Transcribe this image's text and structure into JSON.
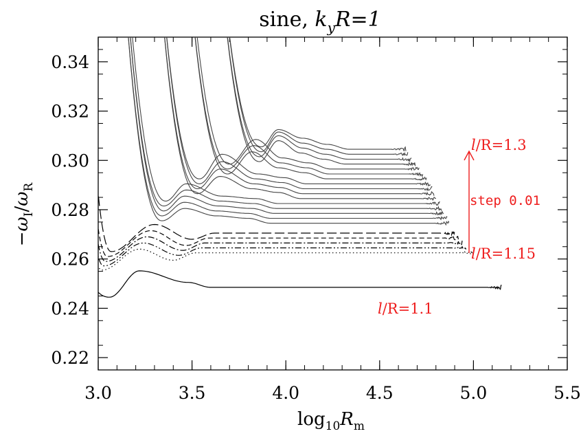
{
  "chart_data": {
    "type": "line",
    "title": {
      "prefix": "sine,",
      "var": "k",
      "sub": "y",
      "rest": "R=1"
    },
    "xlabel": {
      "main": "log",
      "sub": "10",
      "var": "R",
      "var_sub": "m"
    },
    "ylabel": {
      "minus": "−",
      "num": "ω",
      "num_sub": "I",
      "slash": "/",
      "den": "ω",
      "den_sub": "R"
    },
    "xlim": [
      3.0,
      5.5
    ],
    "ylim": [
      0.215,
      0.35
    ],
    "xticks": [
      "3.0",
      "3.5",
      "4.0",
      "4.5",
      "5.0",
      "5.5"
    ],
    "yticks": [
      "0.22",
      "0.24",
      "0.26",
      "0.28",
      "0.30",
      "0.32",
      "0.34"
    ],
    "grid": false,
    "line_color": "#000000",
    "annotation_color": "#ee1c1c",
    "annotations": {
      "top": {
        "l": "l",
        "rest": "/R=1.3"
      },
      "step": "step 0.01",
      "bottom": {
        "l": "l",
        "rest": "/R=1.15"
      },
      "lowest": {
        "l": "l",
        "rest": "/R=1.1"
      }
    },
    "series": [
      {
        "style": "solid",
        "min_x": 3.06,
        "min_y": 0.2445,
        "end_x": 5.15,
        "plateau": 0.2485,
        "bumps": [
          [
            3.22,
            0.2552
          ],
          [
            3.48,
            0.2505
          ]
        ]
      },
      {
        "style": "dotted",
        "min_x": 3.02,
        "min_y": 0.2555,
        "end_x": 5.0,
        "plateau": 0.2625,
        "bumps": [
          [
            3.22,
            0.264
          ],
          [
            3.4,
            0.2595
          ]
        ]
      },
      {
        "style": "dashdotdot",
        "min_x": 3.03,
        "min_y": 0.2572,
        "end_x": 4.96,
        "plateau": 0.2645,
        "bumps": [
          [
            3.24,
            0.2665
          ],
          [
            3.43,
            0.2615
          ]
        ]
      },
      {
        "style": "dashdot",
        "min_x": 3.04,
        "min_y": 0.259,
        "end_x": 4.94,
        "plateau": 0.2665,
        "bumps": [
          [
            3.26,
            0.269
          ],
          [
            3.45,
            0.2635
          ]
        ]
      },
      {
        "style": "dashed",
        "min_x": 3.05,
        "min_y": 0.261,
        "end_x": 4.92,
        "plateau": 0.2685,
        "bumps": [
          [
            3.28,
            0.2715
          ],
          [
            3.47,
            0.2655
          ]
        ]
      },
      {
        "style": "longdash",
        "min_x": 3.07,
        "min_y": 0.263,
        "end_x": 4.9,
        "plateau": 0.2705,
        "bumps": [
          [
            3.3,
            0.274
          ],
          [
            3.5,
            0.268
          ]
        ]
      },
      {
        "style": "solid",
        "min_x": 3.34,
        "min_y": 0.2755,
        "end_x": 4.87,
        "plateau": 0.2745,
        "bumps": [
          [
            3.46,
            0.2805
          ],
          [
            3.63,
            0.2775
          ],
          [
            3.8,
            0.2765
          ]
        ]
      },
      {
        "style": "solid",
        "min_x": 3.34,
        "min_y": 0.2775,
        "end_x": 4.86,
        "plateau": 0.2765,
        "bumps": [
          [
            3.46,
            0.283
          ],
          [
            3.63,
            0.2795
          ],
          [
            3.8,
            0.2785
          ]
        ]
      },
      {
        "style": "solid",
        "min_x": 3.35,
        "min_y": 0.2795,
        "end_x": 4.84,
        "plateau": 0.2785,
        "bumps": [
          [
            3.46,
            0.2855
          ],
          [
            3.64,
            0.2815
          ],
          [
            3.82,
            0.2805
          ]
        ]
      },
      {
        "style": "solid",
        "min_x": 3.35,
        "min_y": 0.2815,
        "end_x": 4.83,
        "plateau": 0.2805,
        "bumps": [
          [
            3.47,
            0.288
          ],
          [
            3.65,
            0.2835
          ],
          [
            3.83,
            0.2825
          ]
        ]
      },
      {
        "style": "solid",
        "min_x": 3.36,
        "min_y": 0.2835,
        "end_x": 4.82,
        "plateau": 0.2825,
        "bumps": [
          [
            3.47,
            0.2905
          ],
          [
            3.66,
            0.2855
          ],
          [
            3.84,
            0.2845
          ]
        ]
      },
      {
        "style": "solid",
        "min_x": 3.53,
        "min_y": 0.2865,
        "end_x": 4.8,
        "plateau": 0.2845,
        "bumps": [
          [
            3.65,
            0.2935
          ],
          [
            3.82,
            0.2885
          ],
          [
            3.96,
            0.287
          ]
        ]
      },
      {
        "style": "solid",
        "min_x": 3.53,
        "min_y": 0.2885,
        "end_x": 4.79,
        "plateau": 0.2865,
        "bumps": [
          [
            3.65,
            0.2965
          ],
          [
            3.83,
            0.2905
          ],
          [
            3.97,
            0.289
          ]
        ]
      },
      {
        "style": "solid",
        "min_x": 3.54,
        "min_y": 0.2905,
        "end_x": 4.78,
        "plateau": 0.2885,
        "bumps": [
          [
            3.66,
            0.2995
          ],
          [
            3.84,
            0.2925
          ],
          [
            3.98,
            0.291
          ]
        ]
      },
      {
        "style": "solid",
        "min_x": 3.54,
        "min_y": 0.2925,
        "end_x": 4.77,
        "plateau": 0.2905,
        "bumps": [
          [
            3.66,
            0.3025
          ],
          [
            3.85,
            0.2945
          ],
          [
            3.99,
            0.293
          ]
        ]
      },
      {
        "style": "solid",
        "min_x": 3.69,
        "min_y": 0.2945,
        "end_x": 4.75,
        "plateau": 0.2925,
        "bumps": [
          [
            3.82,
            0.3035
          ],
          [
            3.96,
            0.297
          ],
          [
            4.1,
            0.295
          ]
        ]
      },
      {
        "style": "solid",
        "min_x": 3.69,
        "min_y": 0.2965,
        "end_x": 4.73,
        "plateau": 0.2945,
        "bumps": [
          [
            3.83,
            0.306
          ],
          [
            3.97,
            0.299
          ],
          [
            4.11,
            0.297
          ]
        ]
      },
      {
        "style": "solid",
        "min_x": 3.7,
        "min_y": 0.2985,
        "end_x": 4.71,
        "plateau": 0.2965,
        "bumps": [
          [
            3.84,
            0.3085
          ],
          [
            3.98,
            0.301
          ],
          [
            4.12,
            0.299
          ]
        ]
      },
      {
        "style": "solid",
        "min_x": 3.86,
        "min_y": 0.2995,
        "end_x": 4.69,
        "plateau": 0.2985,
        "bumps": [
          [
            3.96,
            0.308
          ],
          [
            4.08,
            0.303
          ],
          [
            4.2,
            0.3005
          ]
        ]
      },
      {
        "style": "solid",
        "min_x": 3.86,
        "min_y": 0.3015,
        "end_x": 4.67,
        "plateau": 0.3005,
        "bumps": [
          [
            3.96,
            0.31
          ],
          [
            4.09,
            0.305
          ],
          [
            4.21,
            0.3025
          ]
        ]
      },
      {
        "style": "solid",
        "min_x": 3.87,
        "min_y": 0.3035,
        "end_x": 4.65,
        "plateau": 0.3025,
        "bumps": [
          [
            3.96,
            0.3115
          ],
          [
            4.09,
            0.307
          ],
          [
            4.22,
            0.3045
          ]
        ]
      },
      {
        "style": "solid",
        "min_x": 3.87,
        "min_y": 0.3055,
        "end_x": 4.64,
        "plateau": 0.3045,
        "bumps": [
          [
            3.96,
            0.3125
          ],
          [
            4.09,
            0.309
          ],
          [
            4.22,
            0.3065
          ]
        ]
      }
    ],
    "steep_branches": [
      {
        "min_x": 3.34,
        "top_x": 3.15,
        "min_y": 0.2755
      },
      {
        "min_x": 3.53,
        "top_x": 3.4,
        "min_y": 0.2865
      },
      {
        "min_x": 3.69,
        "top_x": 3.6,
        "min_y": 0.2945
      },
      {
        "min_x": 3.86,
        "top_x": 3.8,
        "min_y": 0.2995
      }
    ]
  }
}
